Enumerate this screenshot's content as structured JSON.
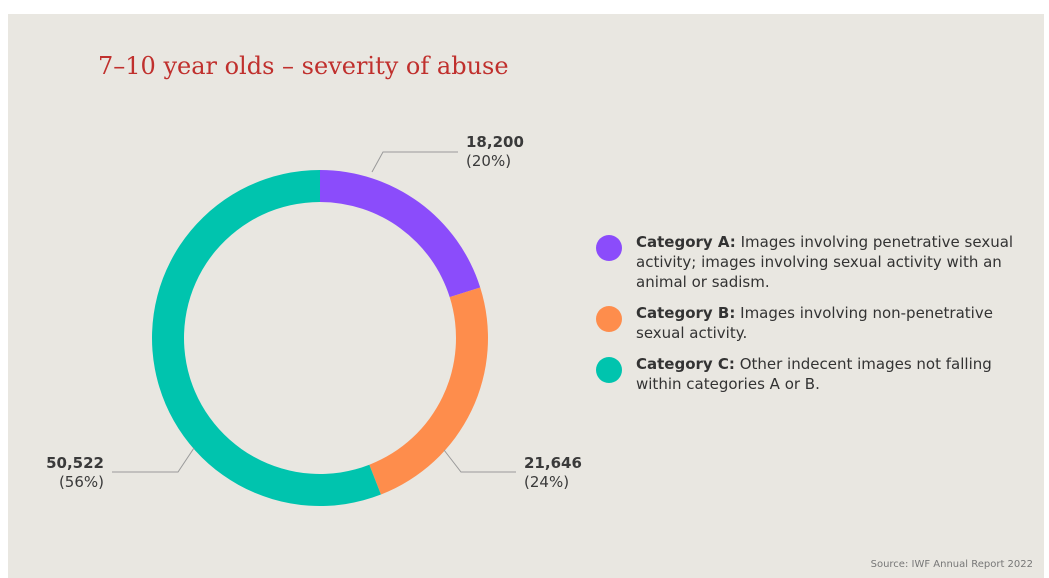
{
  "chart_data": {
    "type": "pie",
    "title": "7–10 year olds – severity of abuse",
    "donut": true,
    "categories": [
      "Category A",
      "Category B",
      "Category C"
    ],
    "values": [
      18200,
      21646,
      50522
    ],
    "value_labels": [
      "18,200",
      "21,646",
      "50,522"
    ],
    "percent_labels": [
      "(20%)",
      "(24%)",
      "(56%)"
    ],
    "colors": [
      "#8b4cfb",
      "#fe8d4c",
      "#00c4ae"
    ],
    "legend_position": "right",
    "legend": [
      {
        "name": "Category A:",
        "description": "Images involving penetrative sexual activity; images involving sexual activity with an animal or sadism.",
        "color": "#8b4cfb"
      },
      {
        "name": "Category B:",
        "description": "Images involving non-penetrative sexual activity.",
        "color": "#fe8d4c"
      },
      {
        "name": "Category C:",
        "description": "Other indecent images not falling within categories A or B.",
        "color": "#00c4ae"
      }
    ],
    "source": "Source: IWF Annual Report 2022"
  }
}
